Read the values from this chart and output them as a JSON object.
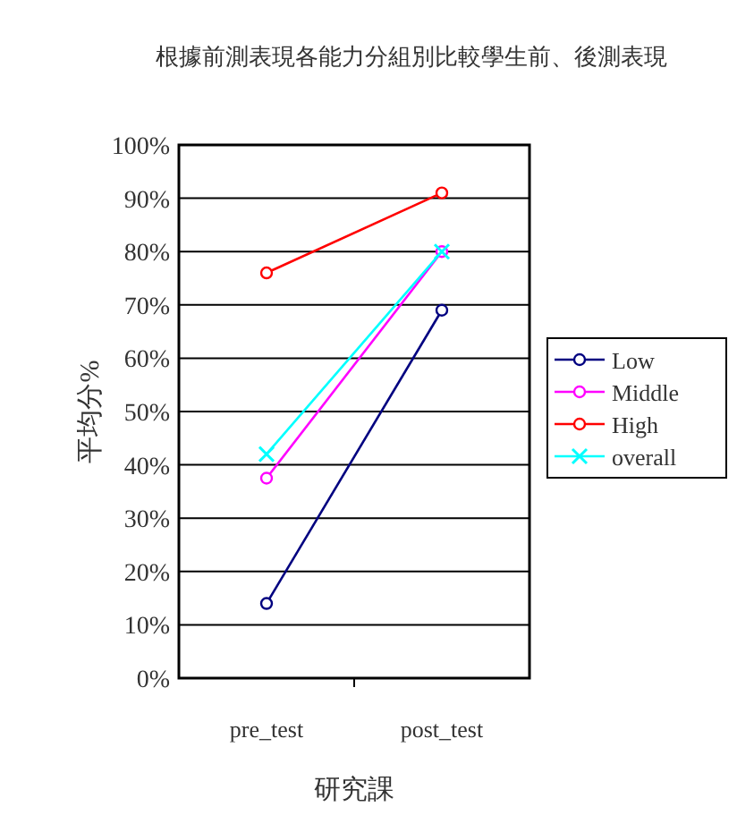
{
  "chart_data": {
    "type": "line",
    "title": "根據前測表現各能力分組別比較學生前、後測表現",
    "xlabel": "研究課",
    "ylabel": "平均分%",
    "categories": [
      "pre_test",
      "post_test"
    ],
    "series": [
      {
        "name": "Low",
        "color": "#000080",
        "marker": "circle",
        "values": [
          14,
          69
        ]
      },
      {
        "name": "Middle",
        "color": "#ff00ff",
        "marker": "circle",
        "values": [
          37.5,
          80
        ]
      },
      {
        "name": "High",
        "color": "#ff0000",
        "marker": "circle",
        "values": [
          76,
          91
        ]
      },
      {
        "name": "overall",
        "color": "#00ffff",
        "marker": "cross",
        "values": [
          42,
          80
        ]
      }
    ],
    "ylim": [
      0,
      100
    ],
    "yticks": [
      {
        "value": 0,
        "label": "0%"
      },
      {
        "value": 10,
        "label": "10%"
      },
      {
        "value": 20,
        "label": "20%"
      },
      {
        "value": 30,
        "label": "30%"
      },
      {
        "value": 40,
        "label": "40%"
      },
      {
        "value": 50,
        "label": "50%"
      },
      {
        "value": 60,
        "label": "60%"
      },
      {
        "value": 70,
        "label": "70%"
      },
      {
        "value": 80,
        "label": "80%"
      },
      {
        "value": 90,
        "label": "90%"
      },
      {
        "value": 100,
        "label": "100%"
      }
    ],
    "grid": "y",
    "legend": "right"
  }
}
